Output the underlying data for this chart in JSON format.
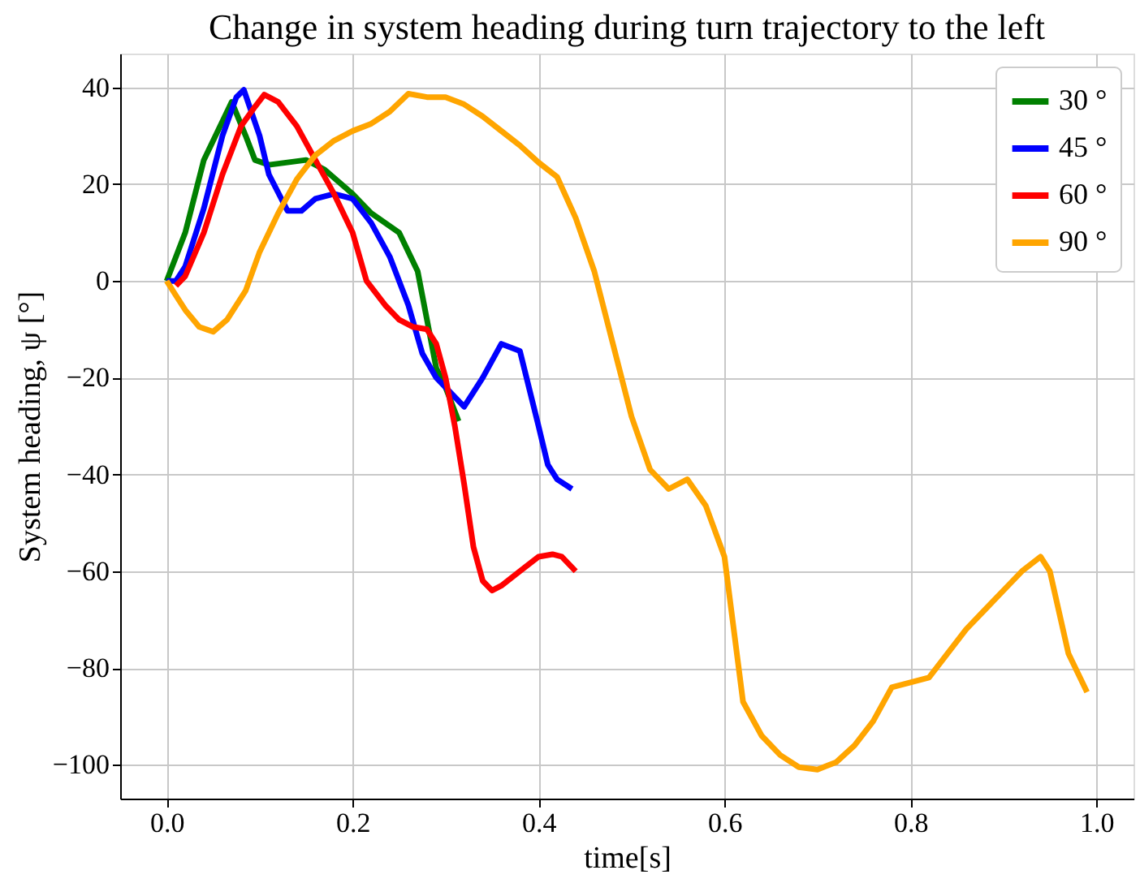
{
  "chart_data": {
    "type": "line",
    "title": "Change in system heading during turn trajectory to the left",
    "xlabel": "time[s]",
    "ylabel": "System heading, ψ [°]",
    "xlim": [
      -0.05,
      1.04
    ],
    "ylim": [
      -107,
      47
    ],
    "xticks": [
      {
        "value": 0,
        "label": "0.0"
      },
      0.2,
      0.4,
      0.6,
      0.8,
      {
        "value": 1,
        "label": "1.0"
      }
    ],
    "yticks": [
      -100,
      -80,
      -60,
      -40,
      -20,
      0,
      20,
      40
    ],
    "grid": true,
    "legend": "top right",
    "marker": "none",
    "line_style": "solid",
    "series": [
      {
        "name": "30 °",
        "color": "#008000",
        "x": [
          0,
          0.02,
          0.04,
          0.06,
          0.07,
          0.085,
          0.095,
          0.11,
          0.15,
          0.17,
          0.2,
          0.22,
          0.25,
          0.27,
          0.28,
          0.29,
          0.3,
          0.314
        ],
        "values": [
          0,
          10,
          25,
          33,
          37,
          30,
          25,
          24,
          25,
          23,
          18,
          14,
          10,
          2,
          -8,
          -18,
          -22,
          -29
        ]
      },
      {
        "name": "45 °",
        "color": "#0000ff",
        "x": [
          0,
          0.01,
          0.02,
          0.04,
          0.06,
          0.075,
          0.083,
          0.1,
          0.11,
          0.13,
          0.145,
          0.16,
          0.18,
          0.2,
          0.22,
          0.24,
          0.26,
          0.275,
          0.29,
          0.31,
          0.32,
          0.34,
          0.36,
          0.38,
          0.4,
          0.41,
          0.42,
          0.436
        ],
        "values": [
          0,
          0,
          3,
          15,
          30,
          38,
          39.5,
          30,
          22,
          14.5,
          14.5,
          17,
          18,
          17,
          12,
          5,
          -5,
          -15,
          -20,
          -24,
          -26,
          -20,
          -13,
          -14.5,
          -30,
          -38,
          -41,
          -43
        ]
      },
      {
        "name": "60 °",
        "color": "#ff0000",
        "x": [
          0.01,
          0.02,
          0.04,
          0.06,
          0.08,
          0.095,
          0.105,
          0.12,
          0.14,
          0.16,
          0.18,
          0.2,
          0.215,
          0.235,
          0.25,
          0.265,
          0.28,
          0.29,
          0.3,
          0.31,
          0.32,
          0.33,
          0.34,
          0.35,
          0.36,
          0.38,
          0.4,
          0.415,
          0.425,
          0.44
        ],
        "values": [
          -1,
          1,
          10,
          22,
          32,
          36,
          38.5,
          37,
          32,
          25,
          18,
          10,
          0,
          -5,
          -8,
          -9.5,
          -10,
          -13,
          -20,
          -30,
          -42,
          -55,
          -62,
          -64,
          -63,
          -60,
          -57,
          -56.5,
          -57,
          -60
        ]
      },
      {
        "name": "90 °",
        "color": "#ffa500",
        "x": [
          0,
          0.01,
          0.02,
          0.035,
          0.05,
          0.065,
          0.085,
          0.1,
          0.12,
          0.14,
          0.16,
          0.18,
          0.2,
          0.22,
          0.24,
          0.26,
          0.28,
          0.3,
          0.32,
          0.34,
          0.36,
          0.38,
          0.4,
          0.42,
          0.44,
          0.46,
          0.48,
          0.5,
          0.52,
          0.54,
          0.56,
          0.58,
          0.6,
          0.61,
          0.62,
          0.64,
          0.66,
          0.68,
          0.7,
          0.72,
          0.74,
          0.76,
          0.78,
          0.8,
          0.82,
          0.84,
          0.86,
          0.88,
          0.9,
          0.92,
          0.94,
          0.95,
          0.97,
          0.99
        ],
        "values": [
          0,
          -3,
          -6,
          -9.5,
          -10.5,
          -8,
          -2,
          6,
          14,
          21,
          26,
          29,
          31,
          32.5,
          35,
          38.7,
          38,
          38,
          36.5,
          34,
          31,
          28,
          24.5,
          21.5,
          13,
          2,
          -13,
          -28,
          -39,
          -43,
          -41,
          -46.5,
          -57,
          -72,
          -87,
          -94,
          -98,
          -100.5,
          -101,
          -99.5,
          -96,
          -91,
          -84,
          -83,
          -82,
          -77,
          -72,
          -68,
          -64,
          -60,
          -57,
          -60,
          -77,
          -85
        ]
      }
    ]
  }
}
